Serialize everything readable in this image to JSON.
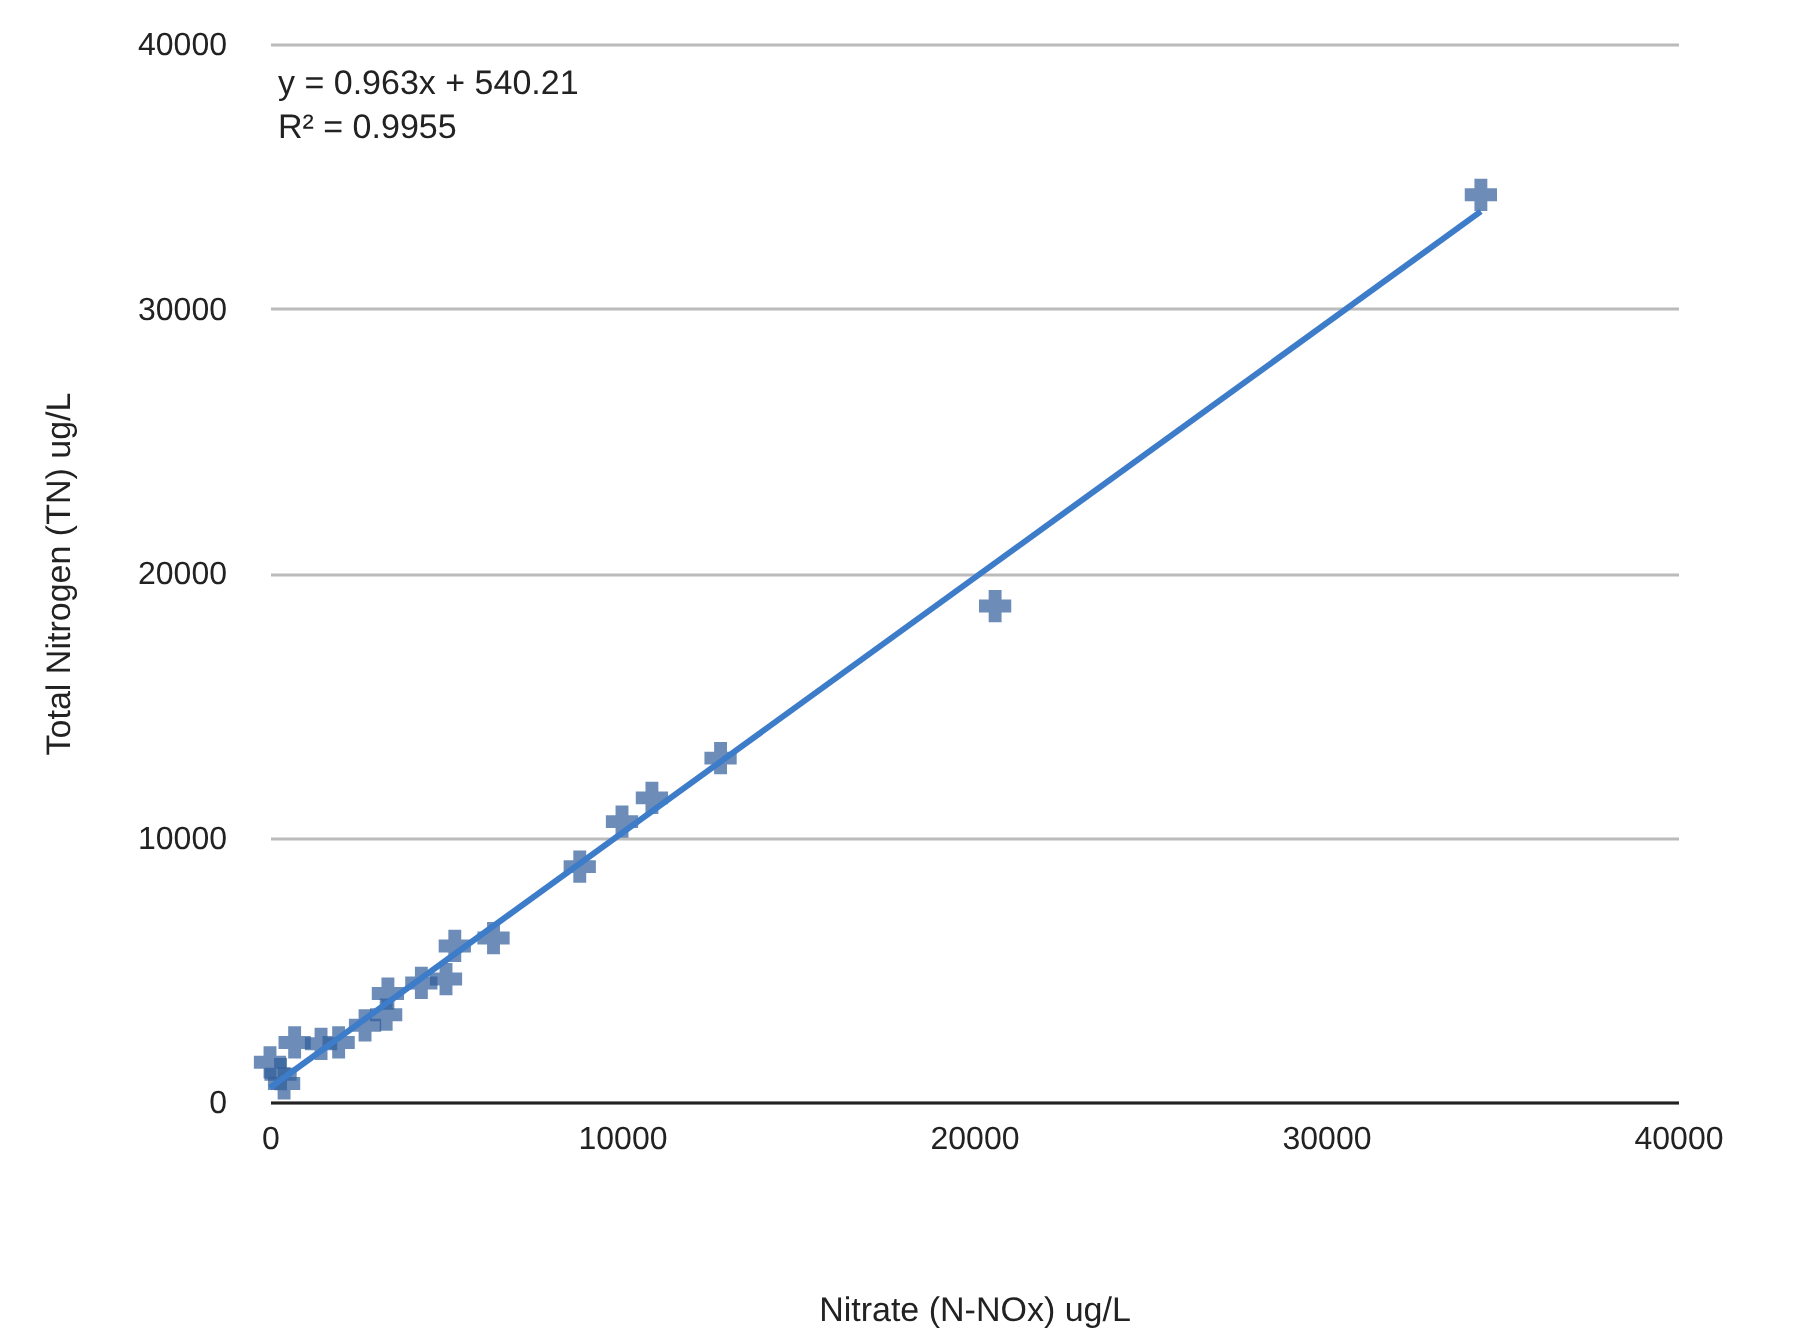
{
  "chart_data": {
    "type": "scatter",
    "xlabel": "Nitrate (N-NOx) ug/L",
    "ylabel": "Total Nitrogen (TN) ug/L",
    "annotations": [
      "y = 0.963x + 540.21",
      "R² = 0.9955"
    ],
    "series": [
      {
        "color": "#2f5c9a",
        "marker": "cross",
        "x": [
          0,
          300,
          400,
          700,
          1450,
          1950,
          2700,
          3300,
          3350,
          4300,
          5000,
          5250,
          6350,
          8800,
          10000,
          10850,
          12800,
          20600,
          34400
        ],
        "values": [
          1500,
          1050,
          700,
          2250,
          2200,
          2250,
          2900,
          3300,
          4100,
          4500,
          4650,
          5900,
          6200,
          8900,
          10600,
          11500,
          13000,
          18750,
          34300
        ]
      },
      {
        "type": "line",
        "color": "#3d7cc9",
        "marker": "none",
        "x": [
          0,
          34400
        ],
        "values": [
          540,
          33670
        ]
      }
    ],
    "xlim": [
      0,
      40000
    ],
    "xticks": [
      0,
      10000,
      20000,
      30000,
      40000
    ],
    "ylim": [
      0,
      40000
    ],
    "yticks": [
      0,
      10000,
      20000,
      30000,
      40000
    ],
    "grid": "y"
  }
}
